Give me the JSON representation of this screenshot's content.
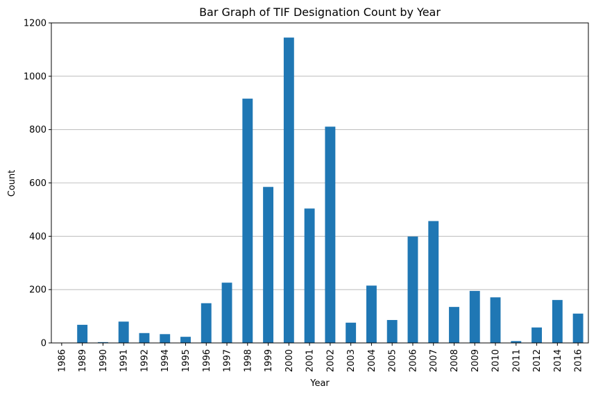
{
  "chart_data": {
    "type": "bar",
    "title": "Bar Graph of TIF Designation Count by Year",
    "xlabel": "Year",
    "ylabel": "Count",
    "categories": [
      "1986",
      "1989",
      "1990",
      "1991",
      "1992",
      "1994",
      "1995",
      "1996",
      "1997",
      "1998",
      "1999",
      "2000",
      "2001",
      "2002",
      "2003",
      "2004",
      "2005",
      "2006",
      "2007",
      "2008",
      "2009",
      "2010",
      "2011",
      "2012",
      "2014",
      "2016"
    ],
    "values": [
      1,
      68,
      3,
      80,
      37,
      33,
      23,
      149,
      226,
      916,
      585,
      1145,
      504,
      811,
      76,
      215,
      86,
      399,
      457,
      135,
      195,
      171,
      7,
      58,
      161,
      110
    ],
    "ylim": [
      0,
      1200
    ],
    "yticks": [
      0,
      200,
      400,
      600,
      800,
      1000,
      1200
    ],
    "grid": "y",
    "bar_color": "#1f77b4"
  }
}
